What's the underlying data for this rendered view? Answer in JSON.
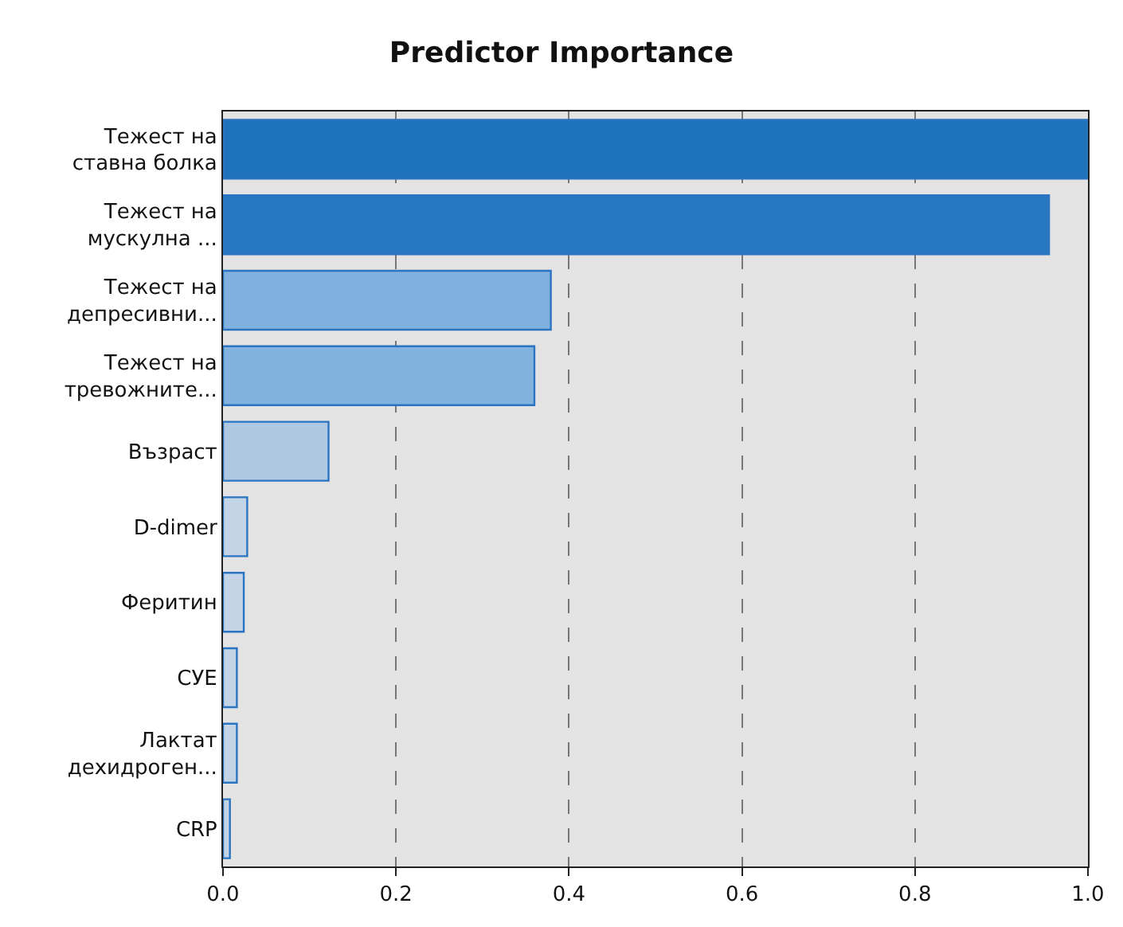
{
  "chart_data": {
    "type": "bar",
    "orientation": "horizontal",
    "title": "Predictor Importance",
    "categories": [
      "Тежест на\nставна болка",
      "Тежест на\nмускулна ...",
      "Тежест на\nдепресивни...",
      "Тежест на\nтревожните...",
      "Възраст",
      "D-dimer",
      "Феритин",
      "СУЕ",
      "Лактат\nдехидроген...",
      "CRP"
    ],
    "values": [
      1.0,
      0.955,
      0.379,
      0.36,
      0.122,
      0.028,
      0.024,
      0.016,
      0.016,
      0.008
    ],
    "colors": [
      "#1f73bb",
      "#2677c0",
      "#7fb0de",
      "#82b2de",
      "#adc8e0",
      "#c3d4e6",
      "#c3d4e6",
      "#c3d4e6",
      "#c3d4e6",
      "#c3d4e6"
    ],
    "xlim": [
      0.0,
      1.0
    ],
    "xticks": [
      {
        "value": 0.0,
        "label": "0.0"
      },
      0.2,
      0.4,
      0.6,
      0.8,
      {
        "value": 1.0,
        "label": "1.0"
      }
    ],
    "grid": "x",
    "line_style": "dashed"
  }
}
